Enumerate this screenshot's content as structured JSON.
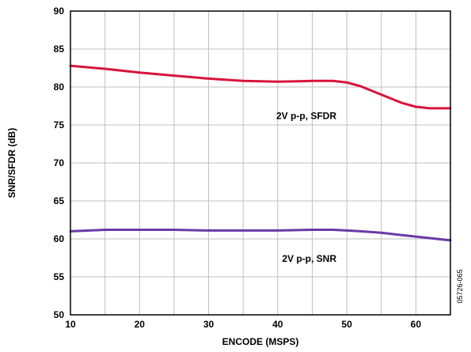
{
  "chart_data": {
    "type": "line",
    "xlabel": "ENCODE (MSPS)",
    "ylabel": "SNR/SFDR (dB)",
    "xlim": [
      10,
      65
    ],
    "ylim": [
      50,
      90
    ],
    "x_ticks": [
      10,
      20,
      30,
      40,
      50,
      60
    ],
    "y_ticks": [
      50,
      55,
      60,
      65,
      70,
      75,
      80,
      85,
      90
    ],
    "grid": true,
    "legend": "none",
    "series": [
      {
        "name": "2V p-p, SFDR",
        "color": "#d8143a",
        "x": [
          10,
          15,
          20,
          25,
          30,
          35,
          40,
          45,
          48,
          50,
          52,
          55,
          58,
          60,
          62,
          65
        ],
        "y": [
          82.8,
          82.4,
          81.9,
          81.5,
          81.1,
          80.8,
          80.7,
          80.8,
          80.8,
          80.6,
          80.1,
          79.0,
          77.9,
          77.4,
          77.2,
          77.2
        ]
      },
      {
        "name": "2V p-p, SNR",
        "color": "#6a3aa6",
        "x": [
          10,
          15,
          20,
          25,
          30,
          35,
          40,
          45,
          48,
          50,
          52,
          55,
          58,
          60,
          62,
          65
        ],
        "y": [
          61.0,
          61.2,
          61.2,
          61.2,
          61.1,
          61.1,
          61.1,
          61.2,
          61.2,
          61.1,
          61.0,
          60.8,
          60.5,
          60.3,
          60.1,
          59.8
        ]
      }
    ],
    "annotations": [
      {
        "text": "2V p-p, SFDR",
        "x": 48.5,
        "y": 75.8,
        "series": 0
      },
      {
        "text": "2V p-p, SNR",
        "x": 48.5,
        "y": 57.0,
        "series": 1
      }
    ],
    "side_note": "05726-065"
  }
}
